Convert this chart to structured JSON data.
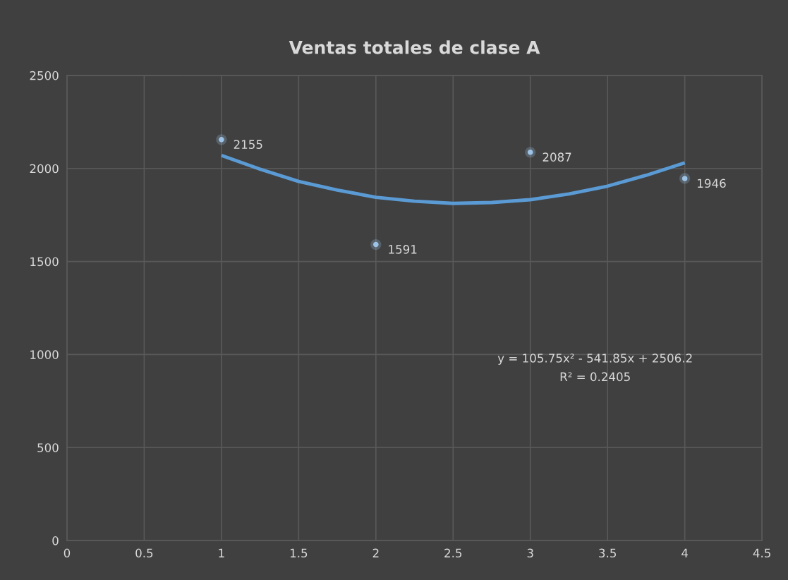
{
  "chart_data": {
    "type": "scatter",
    "title": "Ventas totales de clase A",
    "series": [
      {
        "color": "#9dc3e6",
        "x": [
          1,
          2,
          3,
          4
        ],
        "values": [
          2155,
          1591,
          2087,
          1946
        ],
        "data_labels": true,
        "marker": "circle"
      },
      {
        "type": "line",
        "color": "#5b9bd5",
        "x": [
          1,
          1.25,
          1.5,
          1.75,
          2,
          2.25,
          2.5,
          2.75,
          3,
          3.25,
          3.5,
          3.75,
          4
        ],
        "values": [
          2070,
          1996,
          1930,
          1884,
          1845,
          1824,
          1812,
          1817,
          1832,
          1863,
          1905,
          1963,
          2030
        ],
        "marker": "none"
      }
    ],
    "xlim": [
      0,
      4.5
    ],
    "xticks": [
      0,
      0.5,
      1,
      1.5,
      2,
      2.5,
      3,
      3.5,
      4,
      4.5
    ],
    "ylim": [
      0,
      2500
    ],
    "yticks": [
      0,
      500,
      1000,
      1500,
      2000,
      2500
    ],
    "grid": true,
    "annotations": [
      "y = 105.75x² - 541.85x + 2506.2",
      "R² = 0.2405"
    ]
  }
}
